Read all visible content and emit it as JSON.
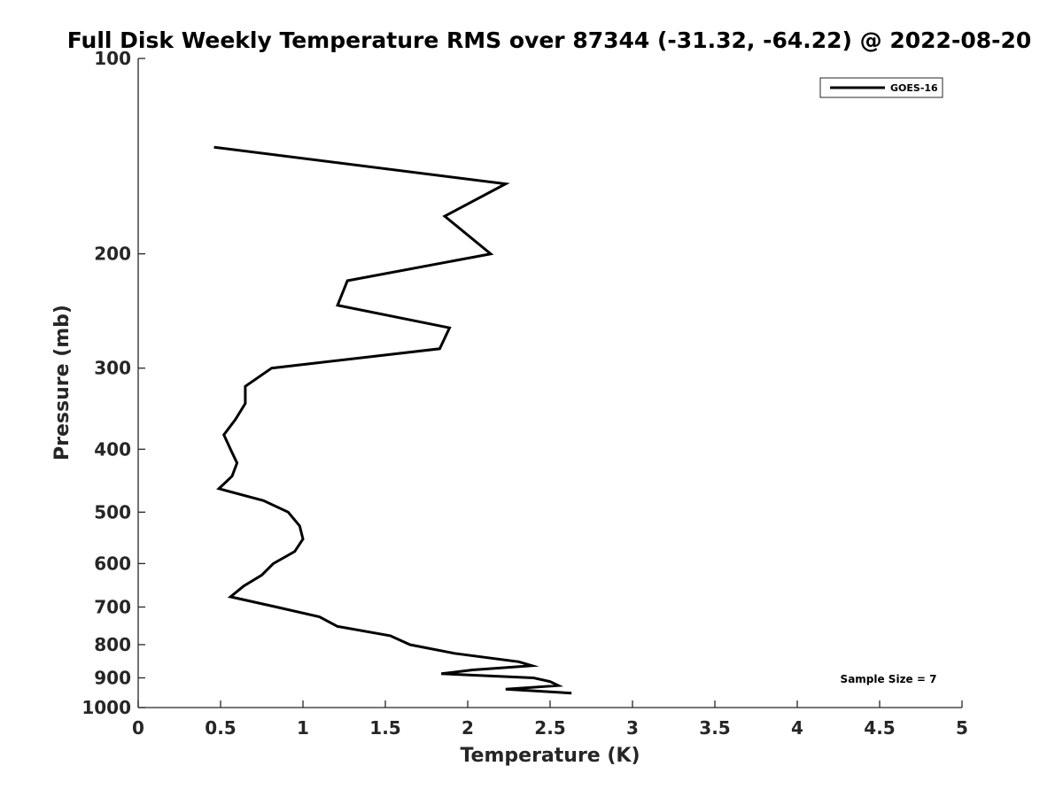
{
  "chart_data": {
    "type": "line",
    "title": "Full Disk Weekly Temperature RMS over 87344 (-31.32, -64.22) @ 2022-08-20",
    "xlabel": "Temperature (K)",
    "ylabel": "Pressure (mb)",
    "xlim": [
      0,
      5
    ],
    "ylim": [
      100,
      1000
    ],
    "y_scale": "log",
    "y_reversed": true,
    "grid": false,
    "legend_position": "top-right",
    "x_ticks": [
      0,
      0.5,
      1,
      1.5,
      2,
      2.5,
      3,
      3.5,
      4,
      4.5,
      5
    ],
    "x_tick_labels": [
      "0",
      "0.5",
      "1",
      "1.5",
      "2",
      "2.5",
      "3",
      "3.5",
      "4",
      "4.5",
      "5"
    ],
    "y_ticks": [
      100,
      200,
      300,
      400,
      500,
      600,
      700,
      800,
      900,
      1000
    ],
    "y_tick_labels": [
      "100",
      "200",
      "300",
      "400",
      "500",
      "600",
      "700",
      "800",
      "900",
      "1000"
    ],
    "series": [
      {
        "name": "GOES-16",
        "color": "#000000",
        "points": [
          [
            0.46,
            137
          ],
          [
            2.23,
            156
          ],
          [
            1.86,
            175
          ],
          [
            2.14,
            200
          ],
          [
            1.27,
            220
          ],
          [
            1.21,
            240
          ],
          [
            1.89,
            260
          ],
          [
            1.83,
            280
          ],
          [
            0.81,
            300
          ],
          [
            0.65,
            320
          ],
          [
            0.65,
            340
          ],
          [
            0.59,
            360
          ],
          [
            0.52,
            380
          ],
          [
            0.56,
            400
          ],
          [
            0.6,
            420
          ],
          [
            0.57,
            440
          ],
          [
            0.49,
            460
          ],
          [
            0.76,
            480
          ],
          [
            0.91,
            500
          ],
          [
            0.98,
            525
          ],
          [
            1.0,
            550
          ],
          [
            0.95,
            575
          ],
          [
            0.82,
            600
          ],
          [
            0.75,
            625
          ],
          [
            0.64,
            650
          ],
          [
            0.56,
            675
          ],
          [
            0.84,
            700
          ],
          [
            1.1,
            725
          ],
          [
            1.21,
            750
          ],
          [
            1.53,
            775
          ],
          [
            1.65,
            800
          ],
          [
            1.92,
            825
          ],
          [
            2.31,
            850
          ],
          [
            2.39,
            862
          ],
          [
            2.03,
            875
          ],
          [
            1.84,
            887
          ],
          [
            2.4,
            900
          ],
          [
            2.5,
            912
          ],
          [
            2.55,
            925
          ],
          [
            2.23,
            937
          ],
          [
            2.63,
            950
          ]
        ]
      }
    ],
    "annotation": "Sample Size = 7"
  }
}
